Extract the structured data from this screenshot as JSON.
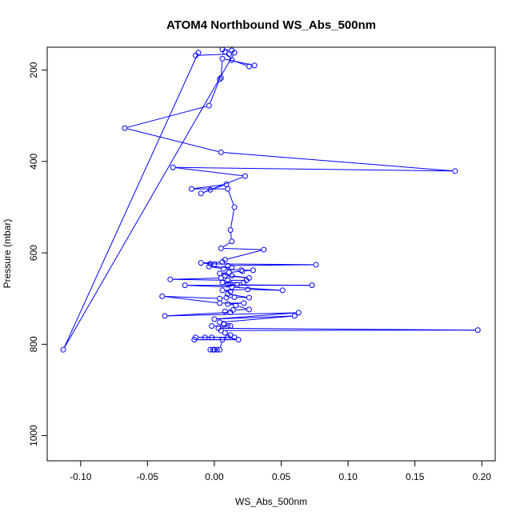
{
  "chart_data": {
    "type": "scatter",
    "title": "ATOM4 Northbound WS_Abs_500nm",
    "xlabel": "WS_Abs_500nm",
    "ylabel": "Pressure (mbar)",
    "xlim": [
      -0.125,
      0.21
    ],
    "ylim": [
      1055,
      150
    ],
    "x_ticks": [
      -0.1,
      -0.05,
      0.0,
      0.05,
      0.1,
      0.15,
      0.2
    ],
    "x_tick_labels": [
      "-0.10",
      "-0.05",
      "0.00",
      "0.05",
      "0.10",
      "0.15",
      "0.20"
    ],
    "y_ticks": [
      200,
      400,
      600,
      800,
      1000
    ],
    "y_tick_labels": [
      "200",
      "400",
      "600",
      "800",
      "1000"
    ],
    "color": "#0000ff",
    "line_style": "connected points (type b)",
    "series": [
      {
        "points": [
          [
            -0.003,
            812
          ],
          [
            0.0,
            812
          ],
          [
            0.002,
            812
          ],
          [
            -0.001,
            812
          ],
          [
            0.004,
            812
          ],
          [
            0.006,
            790
          ],
          [
            -0.015,
            790
          ],
          [
            0.018,
            790
          ],
          [
            0.01,
            785
          ],
          [
            -0.014,
            785
          ],
          [
            -0.007,
            785
          ],
          [
            -0.002,
            785
          ],
          [
            0.015,
            785
          ],
          [
            0.012,
            780
          ],
          [
            0.008,
            775
          ],
          [
            0.005,
            770
          ],
          [
            0.197,
            769
          ],
          [
            0.003,
            765
          ],
          [
            0.01,
            760
          ],
          [
            -0.002,
            760
          ],
          [
            0.012,
            760
          ],
          [
            0.007,
            755
          ],
          [
            0.004,
            752
          ],
          [
            0.06,
            738
          ],
          [
            0.0,
            745
          ],
          [
            0.063,
            731
          ],
          [
            -0.037,
            738
          ],
          [
            0.012,
            730
          ],
          [
            0.008,
            728
          ],
          [
            0.014,
            725
          ],
          [
            0.026,
            724
          ],
          [
            0.016,
            715
          ],
          [
            0.01,
            712
          ],
          [
            0.022,
            710
          ],
          [
            0.004,
            710
          ],
          [
            -0.039,
            695
          ],
          [
            0.004,
            700
          ],
          [
            0.009,
            698
          ],
          [
            0.015,
            697
          ],
          [
            0.026,
            698
          ],
          [
            0.01,
            690
          ],
          [
            0.012,
            685
          ],
          [
            0.006,
            682
          ],
          [
            0.025,
            680
          ],
          [
            0.051,
            682
          ],
          [
            0.013,
            675
          ],
          [
            -0.022,
            671
          ],
          [
            0.073,
            671
          ],
          [
            0.017,
            670
          ],
          [
            0.01,
            668
          ],
          [
            0.012,
            668
          ],
          [
            0.006,
            665
          ],
          [
            0.022,
            665
          ],
          [
            0.024,
            660
          ],
          [
            0.01,
            660
          ],
          [
            -0.033,
            658
          ],
          [
            0.005,
            655
          ],
          [
            0.008,
            650
          ],
          [
            0.026,
            655
          ],
          [
            0.013,
            650
          ],
          [
            0.004,
            645
          ],
          [
            0.011,
            643
          ],
          [
            0.021,
            640
          ],
          [
            0.029,
            638
          ],
          [
            0.02,
            638
          ],
          [
            0.007,
            635
          ],
          [
            -0.004,
            630
          ],
          [
            0.013,
            632
          ],
          [
            0.01,
            628
          ],
          [
            0.076,
            626
          ],
          [
            -0.003,
            624
          ],
          [
            0.0,
            625
          ],
          [
            -0.01,
            622
          ],
          [
            0.006,
            620
          ],
          [
            0.008,
            615
          ],
          [
            0.037,
            593
          ],
          [
            0.005,
            590
          ],
          [
            0.013,
            575
          ],
          [
            0.012,
            550
          ],
          [
            0.015,
            500
          ],
          [
            0.01,
            460
          ],
          [
            -0.017,
            460
          ],
          [
            0.009,
            450
          ],
          [
            -0.003,
            462
          ],
          [
            -0.01,
            470
          ],
          [
            0.023,
            432
          ],
          [
            -0.031,
            413
          ],
          [
            0.18,
            421
          ],
          [
            0.005,
            380
          ],
          [
            -0.067,
            327
          ],
          [
            -0.004,
            278
          ],
          [
            0.004,
            220
          ],
          [
            0.005,
            217
          ],
          [
            0.006,
            175
          ],
          [
            0.03,
            190
          ],
          [
            0.026,
            192
          ],
          [
            0.013,
            178
          ],
          [
            0.008,
            160
          ],
          [
            0.011,
            165
          ],
          [
            -0.014,
            168
          ],
          [
            -0.012,
            162
          ],
          [
            -0.113,
            812
          ],
          [
            0.015,
            162
          ],
          [
            0.013,
            157
          ],
          [
            0.006,
            155
          ]
        ]
      }
    ]
  }
}
